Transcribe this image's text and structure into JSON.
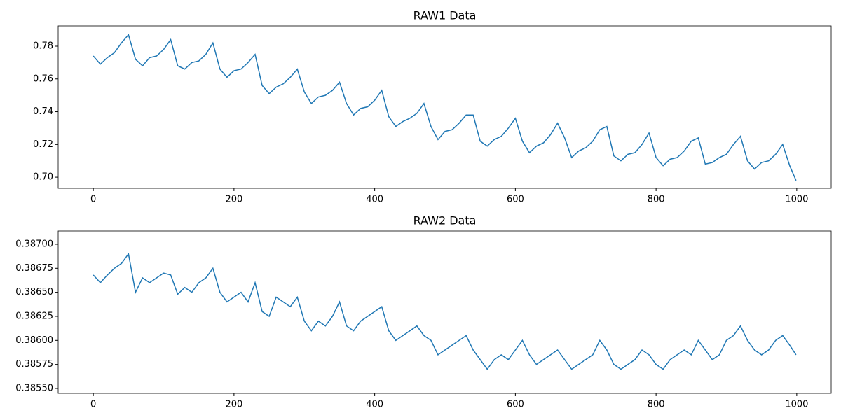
{
  "chart_data": [
    {
      "type": "line",
      "title": "RAW1 Data",
      "color": "#1f77b4",
      "xlim": [
        -49.95,
        1048.95
      ],
      "ylim": [
        0.6932,
        0.7924
      ],
      "xticks": [
        0,
        200,
        400,
        600,
        800,
        1000
      ],
      "yticks": [
        {
          "value": 0.7,
          "label": "0.70"
        },
        0.72,
        0.74,
        0.76,
        0.78
      ],
      "x": [
        0,
        10,
        20,
        30,
        40,
        50,
        60,
        70,
        80,
        90,
        100,
        110,
        120,
        130,
        140,
        150,
        160,
        170,
        180,
        190,
        200,
        210,
        220,
        230,
        240,
        250,
        260,
        270,
        280,
        290,
        300,
        310,
        320,
        330,
        340,
        350,
        360,
        370,
        380,
        390,
        400,
        410,
        420,
        430,
        440,
        450,
        460,
        470,
        480,
        490,
        500,
        510,
        520,
        530,
        540,
        550,
        560,
        570,
        580,
        590,
        600,
        610,
        620,
        630,
        640,
        650,
        660,
        670,
        680,
        690,
        700,
        710,
        720,
        730,
        740,
        750,
        760,
        770,
        780,
        790,
        800,
        810,
        820,
        830,
        840,
        850,
        860,
        870,
        880,
        890,
        900,
        910,
        920,
        930,
        940,
        950,
        960,
        970,
        980,
        990,
        999
      ],
      "values": [
        0.774,
        0.769,
        0.773,
        0.776,
        0.782,
        0.787,
        0.772,
        0.768,
        0.773,
        0.774,
        0.778,
        0.784,
        0.768,
        0.766,
        0.77,
        0.771,
        0.775,
        0.782,
        0.766,
        0.761,
        0.765,
        0.766,
        0.77,
        0.775,
        0.756,
        0.751,
        0.755,
        0.757,
        0.761,
        0.766,
        0.752,
        0.745,
        0.749,
        0.75,
        0.753,
        0.758,
        0.745,
        0.738,
        0.742,
        0.743,
        0.747,
        0.753,
        0.737,
        0.731,
        0.734,
        0.736,
        0.739,
        0.745,
        0.731,
        0.723,
        0.728,
        0.729,
        0.733,
        0.738,
        0.738,
        0.722,
        0.719,
        0.723,
        0.725,
        0.73,
        0.736,
        0.722,
        0.715,
        0.719,
        0.721,
        0.726,
        0.733,
        0.724,
        0.712,
        0.716,
        0.718,
        0.722,
        0.729,
        0.731,
        0.713,
        0.71,
        0.714,
        0.715,
        0.72,
        0.727,
        0.712,
        0.707,
        0.711,
        0.712,
        0.716,
        0.722,
        0.724,
        0.708,
        0.709,
        0.712,
        0.714,
        0.72,
        0.725,
        0.71,
        0.705,
        0.709,
        0.71,
        0.714,
        0.72,
        0.707,
        0.698
      ]
    },
    {
      "type": "line",
      "title": "RAW2 Data",
      "color": "#1f77b4",
      "xlim": [
        -49.95,
        1048.95
      ],
      "ylim": [
        0.385449,
        0.387138
      ],
      "xticks": [
        0,
        200,
        400,
        600,
        800,
        1000
      ],
      "yticks": [
        {
          "value": 0.3855,
          "label": "0.38550"
        },
        0.38575,
        {
          "value": 0.386,
          "label": "0.38600"
        },
        0.38625,
        {
          "value": 0.3865,
          "label": "0.38650"
        },
        0.38675,
        {
          "value": 0.387,
          "label": "0.38700"
        }
      ],
      "x": [
        0,
        10,
        20,
        30,
        40,
        50,
        60,
        70,
        80,
        90,
        100,
        110,
        120,
        130,
        140,
        150,
        160,
        170,
        180,
        190,
        200,
        210,
        220,
        230,
        240,
        250,
        260,
        270,
        280,
        290,
        300,
        310,
        320,
        330,
        340,
        350,
        360,
        370,
        380,
        390,
        400,
        410,
        420,
        430,
        440,
        450,
        460,
        470,
        480,
        490,
        500,
        510,
        520,
        530,
        540,
        550,
        560,
        570,
        580,
        590,
        600,
        610,
        620,
        630,
        640,
        650,
        660,
        670,
        680,
        690,
        700,
        710,
        720,
        730,
        740,
        750,
        760,
        770,
        780,
        790,
        800,
        810,
        820,
        830,
        840,
        850,
        860,
        870,
        880,
        890,
        900,
        910,
        920,
        930,
        940,
        950,
        960,
        970,
        980,
        990,
        999
      ],
      "values": [
        0.38668,
        0.3866,
        0.38668,
        0.38675,
        0.3868,
        0.3869,
        0.3865,
        0.38665,
        0.3866,
        0.38665,
        0.3867,
        0.38668,
        0.38648,
        0.38655,
        0.3865,
        0.3866,
        0.38665,
        0.38675,
        0.3865,
        0.3864,
        0.38645,
        0.3865,
        0.3864,
        0.3866,
        0.3863,
        0.38625,
        0.38645,
        0.3864,
        0.38635,
        0.38645,
        0.3862,
        0.3861,
        0.3862,
        0.38615,
        0.38625,
        0.3864,
        0.38615,
        0.3861,
        0.3862,
        0.38625,
        0.3863,
        0.38635,
        0.3861,
        0.386,
        0.38605,
        0.3861,
        0.38615,
        0.38605,
        0.386,
        0.38585,
        0.3859,
        0.38595,
        0.386,
        0.38605,
        0.3859,
        0.3858,
        0.3857,
        0.3858,
        0.38585,
        0.3858,
        0.3859,
        0.386,
        0.38585,
        0.38575,
        0.3858,
        0.38585,
        0.3859,
        0.3858,
        0.3857,
        0.38575,
        0.3858,
        0.38585,
        0.386,
        0.3859,
        0.38575,
        0.3857,
        0.38575,
        0.3858,
        0.3859,
        0.38585,
        0.38575,
        0.3857,
        0.3858,
        0.38585,
        0.3859,
        0.38585,
        0.386,
        0.3859,
        0.3858,
        0.38585,
        0.386,
        0.38605,
        0.38615,
        0.386,
        0.3859,
        0.38585,
        0.3859,
        0.386,
        0.38605,
        0.38595,
        0.38585
      ]
    }
  ]
}
